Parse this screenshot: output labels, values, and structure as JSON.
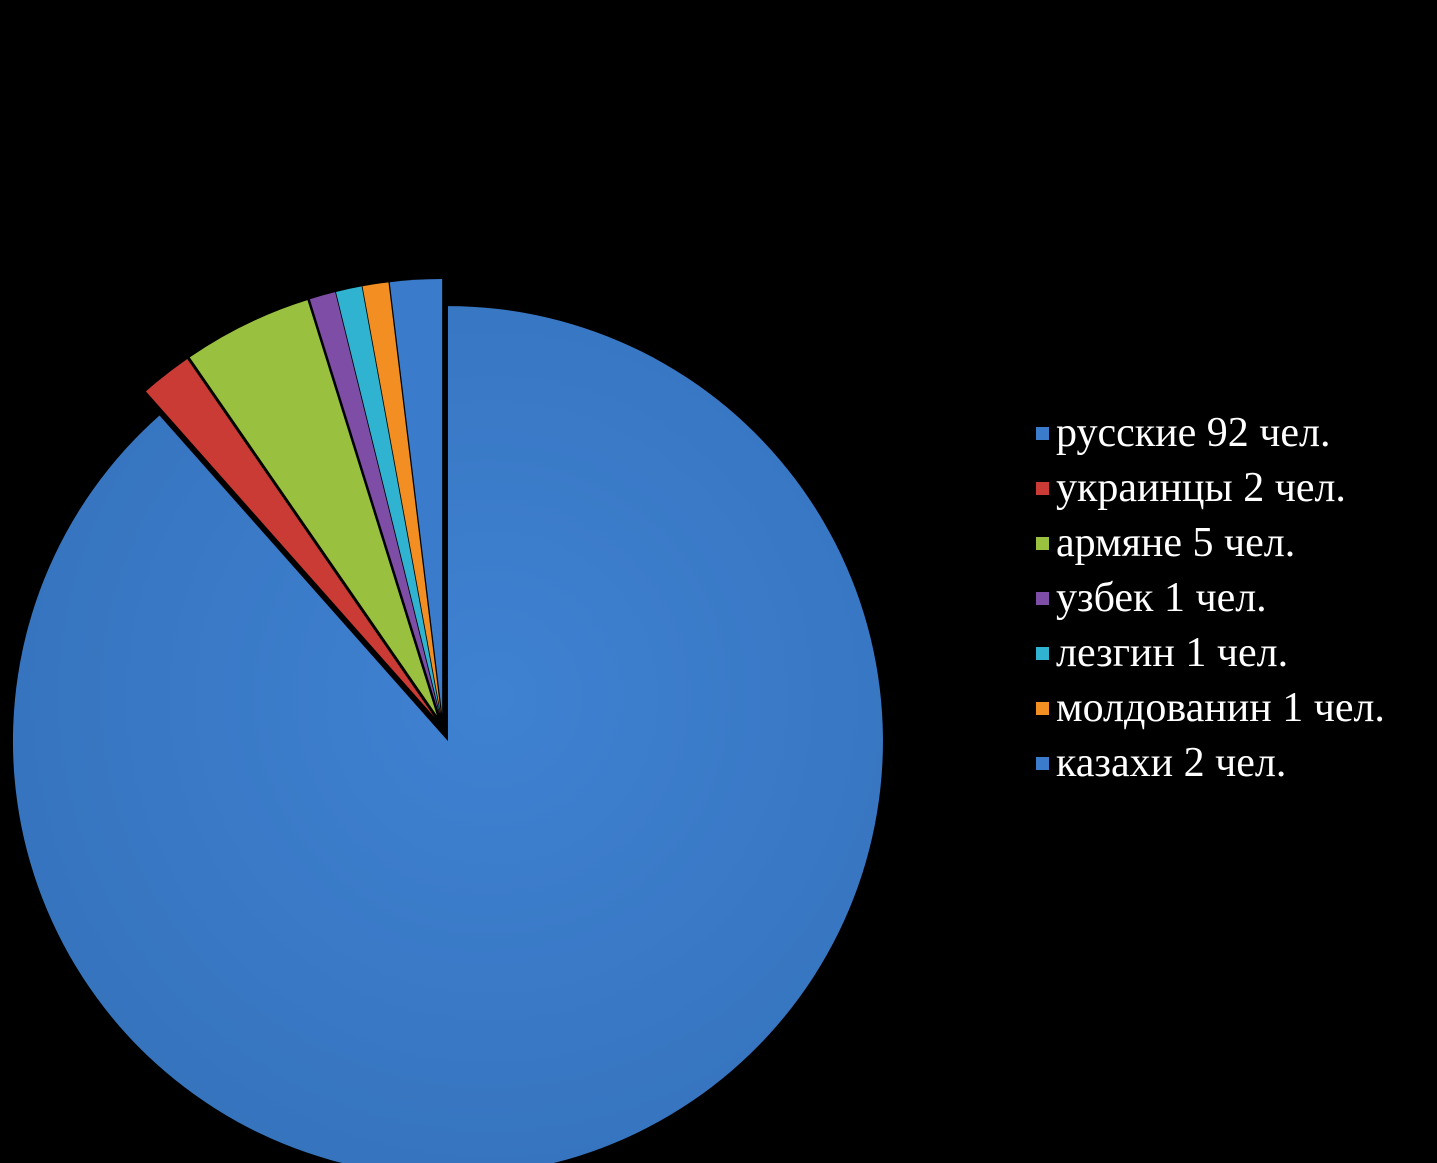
{
  "chart_data": {
    "type": "pie",
    "style": "exploded",
    "legend_position": "right",
    "slices": [
      {
        "label": "русские 92 чел.",
        "name": "русские",
        "value": 92,
        "color": "#3A7CCB"
      },
      {
        "label": "украинцы 2 чел.",
        "name": "украинцы",
        "value": 2,
        "color": "#CB3B35"
      },
      {
        "label": "армяне 5 чел.",
        "name": "армяне",
        "value": 5,
        "color": "#99C13F"
      },
      {
        "label": "узбек 1 чел.",
        "name": "узбек",
        "value": 1,
        "color": "#7E4DA6"
      },
      {
        "label": "лезгин 1 чел.",
        "name": "лезгин",
        "value": 1,
        "color": "#2FB3D1"
      },
      {
        "label": "молдованин 1 чел.",
        "name": "молдованин",
        "value": 1,
        "color": "#F28E22"
      },
      {
        "label": "казахи 2 чел.",
        "name": "казахи",
        "value": 2,
        "color": "#3A7CCB"
      }
    ]
  }
}
